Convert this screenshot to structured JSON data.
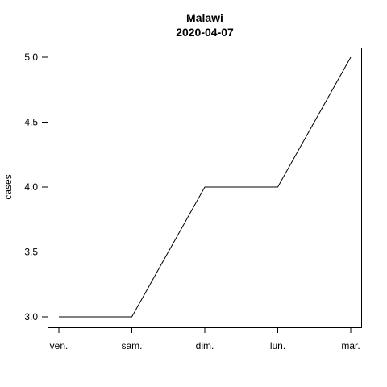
{
  "chart_data": {
    "type": "line",
    "title": "Malawi",
    "subtitle": "2020-04-07",
    "xlabel": "",
    "ylabel": "cases",
    "categories": [
      "ven.",
      "sam.",
      "dim.",
      "lun.",
      "mar."
    ],
    "series": [
      {
        "values": [
          3,
          3,
          4,
          4,
          5
        ]
      }
    ],
    "ylim": [
      3,
      5
    ],
    "yticks": [
      3.0,
      3.5,
      4.0,
      4.5,
      5.0
    ],
    "ytick_labels": [
      "3.0",
      "3.5",
      "4.0",
      "4.5",
      "5.0"
    ],
    "grid": false,
    "line_color": "#000000"
  }
}
